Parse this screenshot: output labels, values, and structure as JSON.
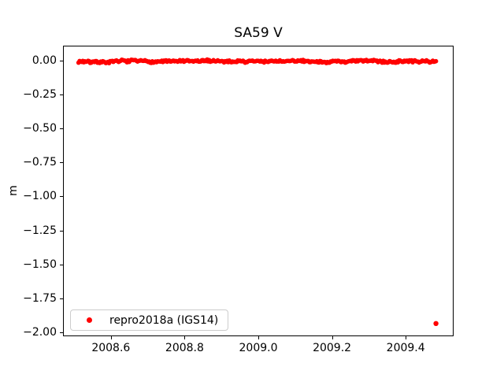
{
  "figure": {
    "background_color": "#ffffff",
    "text_color": "#000000"
  },
  "chart_data": {
    "type": "scatter",
    "title": "SA59 V",
    "xlabel": "",
    "ylabel": "m",
    "xlim": [
      2008.47,
      2009.53
    ],
    "ylim": [
      -2.03,
      0.11
    ],
    "grid": false,
    "xticks": {
      "values": [
        2008.6,
        2008.8,
        2009.0,
        2009.2,
        2009.4
      ],
      "labels": [
        "2008.6",
        "2008.8",
        "2009.0",
        "2009.2",
        "2009.4"
      ]
    },
    "yticks": {
      "values": [
        0.0,
        -0.25,
        -0.5,
        -0.75,
        -1.0,
        -1.25,
        -1.5,
        -1.75,
        -2.0
      ],
      "labels": [
        "0.00",
        "−0.25",
        "−0.50",
        "−0.75",
        "−1.00",
        "−1.25",
        "−1.50",
        "−1.75",
        "−2.00"
      ]
    },
    "legend": {
      "position": "lower-left",
      "label": "repro2018a (IGS14)",
      "marker_color": "#ff0000"
    },
    "series": [
      {
        "name": "repro2018a (IGS14)",
        "color": "#ff0000",
        "marker": "point",
        "marker_px_radius": 2.8,
        "band": {
          "description": "dense daily solutions scattered tightly around zero",
          "x_start": 2008.51,
          "x_end": 2009.48,
          "n_points": 340,
          "y_mean": 0.0,
          "y_noise": 0.008,
          "y_wander": 0.005,
          "seed": 7
        },
        "outlier_points": [
          [
            2009.48,
            -1.93
          ]
        ]
      }
    ]
  }
}
